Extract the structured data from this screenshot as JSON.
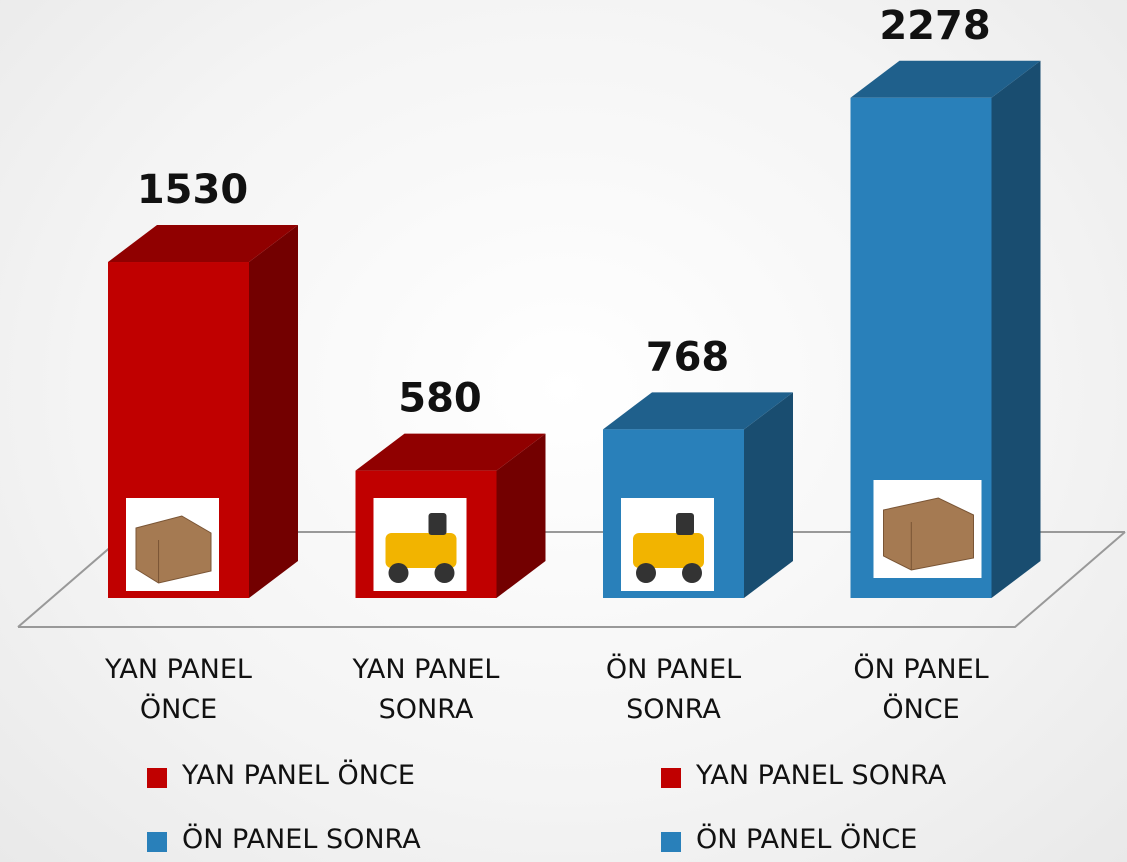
{
  "chart_data": {
    "type": "bar3d",
    "categories": [
      "YAN PANEL ÖNCE",
      "YAN PANEL SONRA",
      "ÖN PANEL SONRA",
      "ÖN PANEL ÖNCE"
    ],
    "values": [
      1530,
      580,
      768,
      2278
    ],
    "colors": [
      "#c00000",
      "#c00000",
      "#2980ba",
      "#2980ba"
    ],
    "ylim": [
      0,
      2500
    ]
  }
}
